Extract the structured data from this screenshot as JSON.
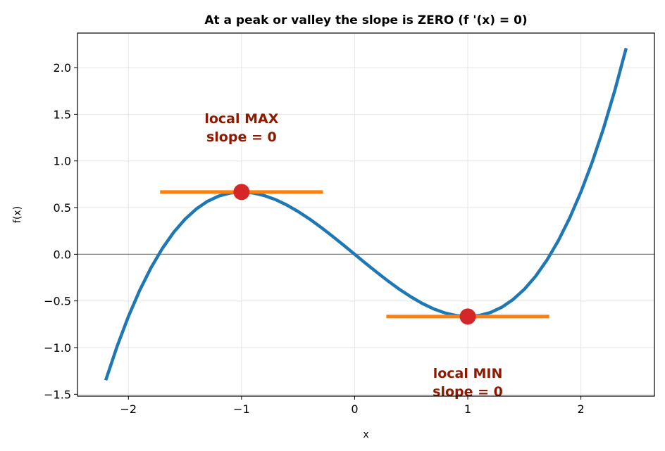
{
  "chart_data": {
    "type": "line",
    "title": "At a peak or valley the slope is ZERO  (f '(x) = 0)",
    "xlabel": "x",
    "ylabel": "f(x)",
    "xlim": [
      -2.45,
      2.65
    ],
    "ylim": [
      -1.52,
      2.37
    ],
    "grid": true,
    "x_ticks": [
      -2,
      -1,
      0,
      1,
      2
    ],
    "x_tick_labels": [
      "−2",
      "−1",
      "0",
      "1",
      "2"
    ],
    "y_ticks": [
      -1.5,
      -1.0,
      -0.5,
      0.0,
      0.5,
      1.0,
      1.5,
      2.0
    ],
    "y_tick_labels": [
      "−1.5",
      "−1.0",
      "−0.5",
      "0.0",
      "0.5",
      "1.0",
      "1.5",
      "2.0"
    ],
    "series": [
      {
        "x": [
          -2.2,
          -2.1,
          -2.0,
          -1.9,
          -1.8,
          -1.7,
          -1.6,
          -1.5,
          -1.4,
          -1.3,
          -1.2,
          -1.1,
          -1.0,
          -0.9,
          -0.8,
          -0.7,
          -0.6,
          -0.5,
          -0.4,
          -0.3,
          -0.2,
          -0.1,
          0.0,
          0.1,
          0.2,
          0.3,
          0.4,
          0.5,
          0.6,
          0.7,
          0.8,
          0.9,
          1.0,
          1.1,
          1.2,
          1.3,
          1.4,
          1.5,
          1.6,
          1.7,
          1.8,
          1.9,
          2.0,
          2.1,
          2.2,
          2.3,
          2.4
        ],
        "y": [
          -1.349,
          -0.987,
          -0.667,
          -0.386,
          -0.144,
          0.062,
          0.235,
          0.375,
          0.485,
          0.568,
          0.624,
          0.656,
          0.667,
          0.657,
          0.629,
          0.586,
          0.528,
          0.458,
          0.379,
          0.291,
          0.197,
          0.1,
          0.0,
          -0.1,
          -0.197,
          -0.291,
          -0.379,
          -0.458,
          -0.528,
          -0.586,
          -0.629,
          -0.657,
          -0.667,
          -0.656,
          -0.624,
          -0.568,
          -0.485,
          -0.375,
          -0.235,
          -0.062,
          0.144,
          0.386,
          0.667,
          0.987,
          1.349,
          1.756,
          2.208
        ],
        "color": "#1f77b4"
      }
    ],
    "tangents": [
      {
        "x": [
          -1.72,
          -0.28
        ],
        "y": [
          0.667,
          0.667
        ],
        "color": "#ff7f0e"
      },
      {
        "x": [
          0.28,
          1.72
        ],
        "y": [
          -0.667,
          -0.667
        ],
        "color": "#ff7f0e"
      }
    ],
    "points": [
      {
        "x": -1,
        "y": 0.667,
        "color": "#d62728"
      },
      {
        "x": 1,
        "y": -0.667,
        "color": "#d62728"
      }
    ],
    "zero_line": {
      "y": 0,
      "color": "#808080"
    },
    "annotations": [
      {
        "lines": [
          "local MAX",
          "slope = 0"
        ],
        "x": -1.0,
        "y": 1.36,
        "color": "#8b1a00"
      },
      {
        "lines": [
          "local MIN",
          "slope = 0"
        ],
        "x": 1.0,
        "y": -1.37,
        "color": "#8b1a00"
      }
    ]
  }
}
